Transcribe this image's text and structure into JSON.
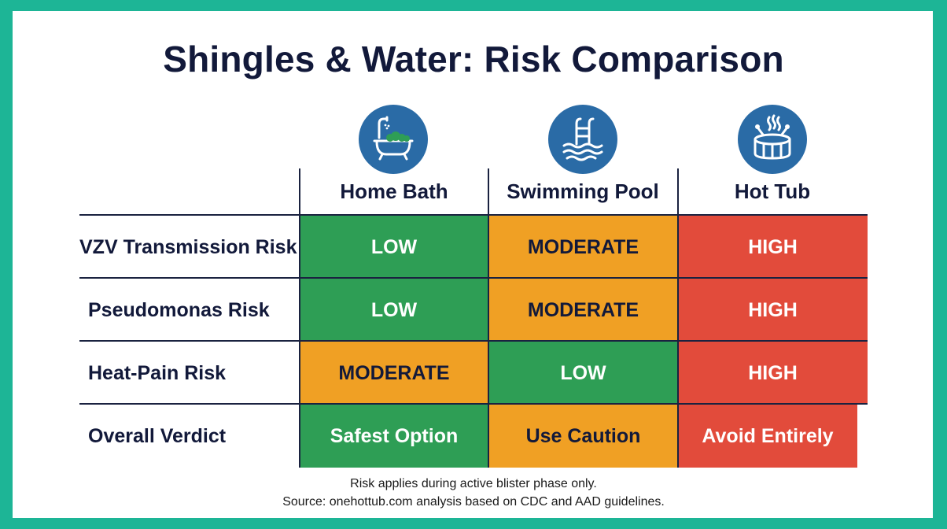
{
  "chart_data": {
    "type": "table",
    "title": "Shingles & Water: Risk Comparison",
    "columns": [
      "Home Bath",
      "Swimming Pool",
      "Hot Tub"
    ],
    "column_icons": [
      "bathtub-icon",
      "pool-ladder-icon",
      "hot-tub-icon"
    ],
    "rows": [
      {
        "label": "VZV Transmission Risk",
        "values": [
          "LOW",
          "MODERATE",
          "HIGH"
        ]
      },
      {
        "label": "Pseudomonas Risk",
        "values": [
          "LOW",
          "MODERATE",
          "HIGH"
        ]
      },
      {
        "label": "Heat-Pain Risk",
        "values": [
          "MODERATE",
          "LOW",
          "HIGH"
        ]
      },
      {
        "label": "Overall Verdict",
        "values": [
          "Safest Option",
          "Use Caution",
          "Avoid Entirely"
        ]
      }
    ],
    "cell_levels": [
      [
        "low",
        "moderate",
        "high"
      ],
      [
        "low",
        "moderate",
        "high"
      ],
      [
        "moderate",
        "low",
        "high"
      ],
      [
        "low",
        "moderate",
        "high"
      ]
    ]
  },
  "colors": {
    "low": "#2e9e55",
    "moderate": "#f0a024",
    "high": "#e24b3b",
    "icon_bg": "#2a6ba6",
    "frame": "#1db596",
    "text_dark": "#12193a"
  },
  "footer": {
    "note": "Risk applies during active blister phase only.",
    "source": "Source: onehottub.com analysis based on CDC and AAD guidelines."
  }
}
